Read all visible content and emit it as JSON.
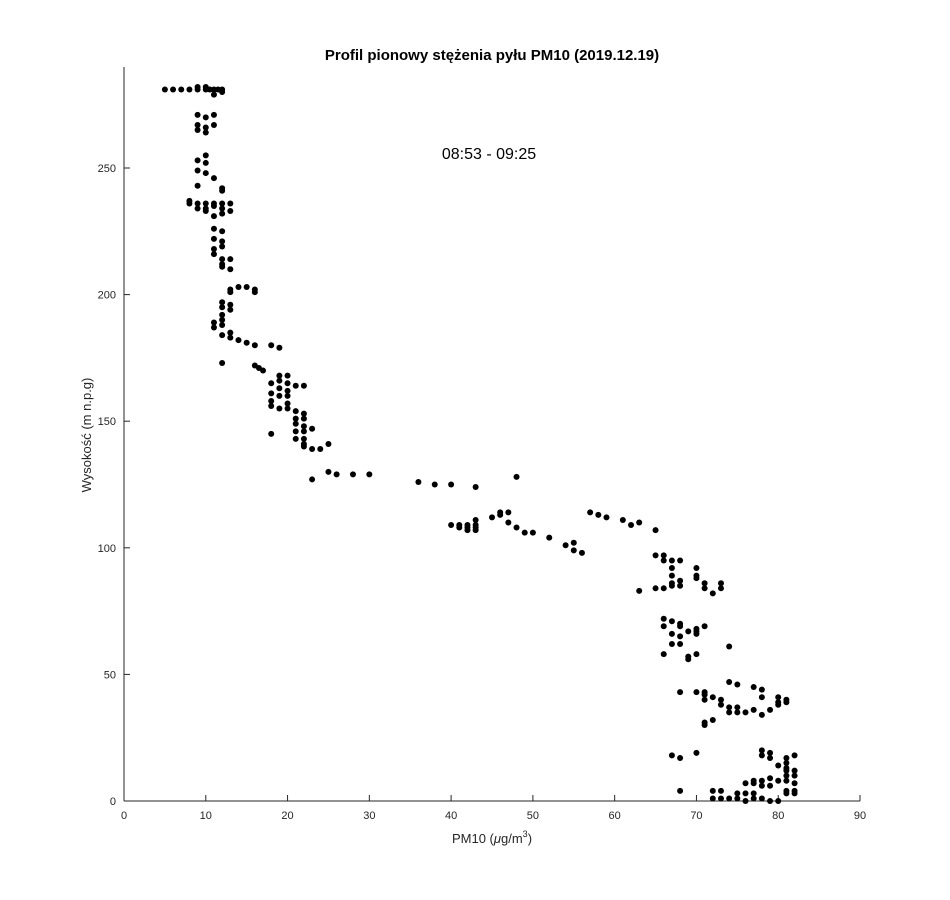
{
  "chart_data": {
    "type": "scatter",
    "title": "Profil pionowy stężenia pyłu PM10 (2019.12.19)",
    "annotation": "08:53 - 09:25",
    "xlabel": "PM10 (μg/m³)",
    "xlabel_parts": {
      "prefix": "PM10 (",
      "mu": "μ",
      "unit": "g/m",
      "sup": "3",
      "suffix": ")"
    },
    "ylabel": "Wysokość (m n.p.g)",
    "xlim": [
      0,
      90
    ],
    "ylim": [
      0,
      285
    ],
    "xticks": [
      0,
      10,
      20,
      30,
      40,
      50,
      60,
      70,
      80,
      90
    ],
    "yticks": [
      0,
      50,
      100,
      150,
      200,
      250
    ],
    "grid": false,
    "marker_color": "#000000",
    "points": [
      [
        5,
        281
      ],
      [
        6,
        281
      ],
      [
        7,
        281
      ],
      [
        8,
        281
      ],
      [
        9,
        281
      ],
      [
        10,
        281
      ],
      [
        10.5,
        281
      ],
      [
        11,
        281
      ],
      [
        11.5,
        281
      ],
      [
        12,
        281
      ],
      [
        11,
        279
      ],
      [
        12,
        280
      ],
      [
        10,
        282
      ],
      [
        9,
        282
      ],
      [
        9,
        271
      ],
      [
        10,
        270
      ],
      [
        11,
        271
      ],
      [
        9,
        267
      ],
      [
        10,
        266
      ],
      [
        11,
        267
      ],
      [
        10,
        264
      ],
      [
        9,
        265
      ],
      [
        10,
        255
      ],
      [
        9,
        253
      ],
      [
        10,
        252
      ],
      [
        9,
        249
      ],
      [
        10,
        248
      ],
      [
        11,
        246
      ],
      [
        9,
        243
      ],
      [
        12,
        242
      ],
      [
        12,
        241
      ],
      [
        8,
        236
      ],
      [
        8,
        237
      ],
      [
        9,
        236
      ],
      [
        10,
        236
      ],
      [
        11,
        236
      ],
      [
        12,
        236
      ],
      [
        13,
        236
      ],
      [
        9,
        234
      ],
      [
        10,
        234
      ],
      [
        11,
        235
      ],
      [
        12,
        234
      ],
      [
        13,
        233
      ],
      [
        10,
        233
      ],
      [
        11,
        231
      ],
      [
        12,
        232
      ],
      [
        11,
        226
      ],
      [
        12,
        225
      ],
      [
        11,
        222
      ],
      [
        12,
        221
      ],
      [
        11,
        218
      ],
      [
        12,
        219
      ],
      [
        11,
        216
      ],
      [
        12,
        214
      ],
      [
        13,
        214
      ],
      [
        12,
        211
      ],
      [
        13,
        210
      ],
      [
        12,
        212
      ],
      [
        13,
        202
      ],
      [
        14,
        203
      ],
      [
        15,
        203
      ],
      [
        16,
        202
      ],
      [
        16,
        201
      ],
      [
        13,
        201
      ],
      [
        12,
        197
      ],
      [
        13,
        196
      ],
      [
        12,
        195
      ],
      [
        13,
        194
      ],
      [
        12,
        192
      ],
      [
        12,
        190
      ],
      [
        11,
        189
      ],
      [
        11,
        187
      ],
      [
        12,
        188
      ],
      [
        12,
        184
      ],
      [
        13,
        185
      ],
      [
        13,
        183
      ],
      [
        14,
        182
      ],
      [
        15,
        181
      ],
      [
        16,
        180
      ],
      [
        18,
        180
      ],
      [
        19,
        179
      ],
      [
        12,
        173
      ],
      [
        16,
        172
      ],
      [
        16.5,
        171
      ],
      [
        17,
        170
      ],
      [
        19,
        168
      ],
      [
        20,
        168
      ],
      [
        19,
        166
      ],
      [
        20,
        165
      ],
      [
        21,
        164
      ],
      [
        22,
        164
      ],
      [
        18,
        165
      ],
      [
        19,
        163
      ],
      [
        20,
        162
      ],
      [
        18,
        161
      ],
      [
        19,
        160
      ],
      [
        20,
        160
      ],
      [
        18,
        158
      ],
      [
        20,
        157
      ],
      [
        18,
        156
      ],
      [
        19,
        155
      ],
      [
        20,
        155
      ],
      [
        21,
        154
      ],
      [
        22,
        153
      ],
      [
        21,
        151
      ],
      [
        22,
        151
      ],
      [
        21,
        149
      ],
      [
        22,
        148
      ],
      [
        23,
        147
      ],
      [
        21,
        146
      ],
      [
        22,
        146
      ],
      [
        21,
        143
      ],
      [
        22,
        143
      ],
      [
        22,
        141
      ],
      [
        25,
        141
      ],
      [
        22,
        140
      ],
      [
        23,
        139
      ],
      [
        24,
        139
      ],
      [
        18,
        145
      ],
      [
        23,
        127
      ],
      [
        25,
        130
      ],
      [
        26,
        129
      ],
      [
        28,
        129
      ],
      [
        30,
        129
      ],
      [
        36,
        126
      ],
      [
        38,
        125
      ],
      [
        40,
        125
      ],
      [
        43,
        124
      ],
      [
        48,
        128
      ],
      [
        40,
        109
      ],
      [
        41,
        109
      ],
      [
        42,
        109
      ],
      [
        43,
        109
      ],
      [
        41,
        108
      ],
      [
        42,
        108
      ],
      [
        43,
        108
      ],
      [
        42,
        107
      ],
      [
        43,
        107
      ],
      [
        43,
        111
      ],
      [
        45,
        112
      ],
      [
        46,
        113
      ],
      [
        46,
        114
      ],
      [
        47,
        114
      ],
      [
        47,
        110
      ],
      [
        48,
        108
      ],
      [
        49,
        106
      ],
      [
        50,
        106
      ],
      [
        52,
        104
      ],
      [
        54,
        101
      ],
      [
        55,
        99
      ],
      [
        55,
        102
      ],
      [
        56,
        98
      ],
      [
        57,
        114
      ],
      [
        58,
        113
      ],
      [
        59,
        112
      ],
      [
        61,
        111
      ],
      [
        62,
        109
      ],
      [
        63,
        110
      ],
      [
        65,
        107
      ],
      [
        65,
        97
      ],
      [
        66,
        97
      ],
      [
        66,
        95
      ],
      [
        67,
        95
      ],
      [
        68,
        95
      ],
      [
        67,
        92
      ],
      [
        67,
        89
      ],
      [
        68,
        87
      ],
      [
        67,
        86
      ],
      [
        66,
        84
      ],
      [
        67,
        85
      ],
      [
        68,
        85
      ],
      [
        65,
        84
      ],
      [
        63,
        83
      ],
      [
        70,
        92
      ],
      [
        70,
        89
      ],
      [
        70,
        88
      ],
      [
        71,
        86
      ],
      [
        71,
        84
      ],
      [
        72,
        82
      ],
      [
        73,
        86
      ],
      [
        73,
        84
      ],
      [
        66,
        72
      ],
      [
        67,
        71
      ],
      [
        68,
        70
      ],
      [
        68,
        69
      ],
      [
        66,
        69
      ],
      [
        69,
        67
      ],
      [
        70,
        67
      ],
      [
        70,
        68
      ],
      [
        70,
        66
      ],
      [
        71,
        69
      ],
      [
        67,
        66
      ],
      [
        68,
        65
      ],
      [
        67,
        62
      ],
      [
        68,
        62
      ],
      [
        66,
        58
      ],
      [
        69,
        57
      ],
      [
        70,
        58
      ],
      [
        69,
        56
      ],
      [
        74,
        61
      ],
      [
        68,
        43
      ],
      [
        70,
        43
      ],
      [
        71,
        43
      ],
      [
        71,
        42
      ],
      [
        72,
        41
      ],
      [
        73,
        40
      ],
      [
        71,
        40
      ],
      [
        74,
        47
      ],
      [
        75,
        46
      ],
      [
        77,
        45
      ],
      [
        78,
        44
      ],
      [
        78,
        41
      ],
      [
        80,
        41
      ],
      [
        81,
        40
      ],
      [
        80,
        39
      ],
      [
        81,
        39
      ],
      [
        73,
        38
      ],
      [
        74,
        37
      ],
      [
        75,
        37
      ],
      [
        74,
        35
      ],
      [
        75,
        35
      ],
      [
        76,
        35
      ],
      [
        77,
        36
      ],
      [
        78,
        34
      ],
      [
        79,
        36
      ],
      [
        80,
        38
      ],
      [
        72,
        32
      ],
      [
        71,
        31
      ],
      [
        71,
        30
      ],
      [
        67,
        18
      ],
      [
        68,
        17
      ],
      [
        70,
        19
      ],
      [
        78,
        20
      ],
      [
        79,
        19
      ],
      [
        78,
        18
      ],
      [
        79,
        17
      ],
      [
        82,
        18
      ],
      [
        81,
        17
      ],
      [
        81,
        15
      ],
      [
        80,
        14
      ],
      [
        81,
        13
      ],
      [
        81,
        12
      ],
      [
        82,
        12
      ],
      [
        81,
        10
      ],
      [
        82,
        10
      ],
      [
        81,
        8
      ],
      [
        82,
        7
      ],
      [
        80,
        8
      ],
      [
        77,
        8
      ],
      [
        78,
        8
      ],
      [
        79,
        9
      ],
      [
        76,
        7
      ],
      [
        77,
        7
      ],
      [
        78,
        6
      ],
      [
        79,
        6
      ],
      [
        68,
        4
      ],
      [
        72,
        4
      ],
      [
        73,
        4
      ],
      [
        75,
        3
      ],
      [
        76,
        3
      ],
      [
        77,
        3
      ],
      [
        81,
        4
      ],
      [
        82,
        4
      ],
      [
        81,
        3
      ],
      [
        82,
        3
      ],
      [
        72,
        1
      ],
      [
        73,
        1
      ],
      [
        74,
        1
      ],
      [
        75,
        1
      ],
      [
        76,
        0
      ],
      [
        77,
        1
      ],
      [
        78,
        1
      ],
      [
        79,
        0
      ],
      [
        80,
        0
      ]
    ]
  }
}
